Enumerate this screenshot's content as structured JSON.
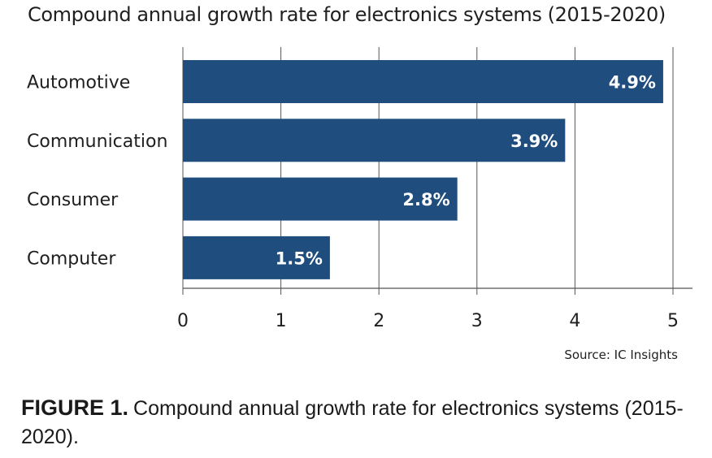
{
  "chart_data": {
    "type": "bar",
    "orientation": "horizontal",
    "title": "Compound annual growth rate for electronics systems (2015-2020)",
    "categories": [
      "Automotive",
      "Communication",
      "Consumer",
      "Computer"
    ],
    "values": [
      4.9,
      3.9,
      2.8,
      1.5
    ],
    "value_labels": [
      "4.9%",
      "3.9%",
      "2.8%",
      "1.5%"
    ],
    "xlim": [
      0,
      5.2
    ],
    "x_ticks": [
      "0",
      "1",
      "2",
      "3",
      "4",
      "5"
    ],
    "grid": "vertical",
    "bar_color": "#1f4e7e",
    "grid_color": "#555555",
    "source": "Source: IC Insights"
  },
  "caption": {
    "label": "FIGURE 1.",
    "text": "Compound annual growth rate for electronics systems (2015-2020)."
  }
}
